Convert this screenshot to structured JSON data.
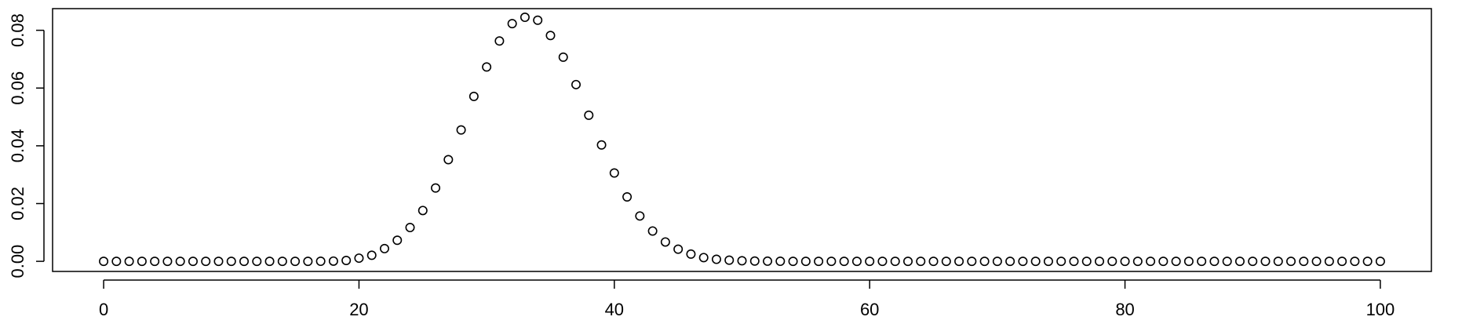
{
  "chart_data": {
    "type": "scatter",
    "title": "",
    "xlabel": "",
    "ylabel": "",
    "xlim": [
      -4,
      104
    ],
    "ylim": [
      -0.0035,
      0.0875
    ],
    "x_ticks": [
      0,
      20,
      40,
      60,
      80,
      100
    ],
    "x_tick_labels": [
      "0",
      "20",
      "40",
      "60",
      "80",
      "100"
    ],
    "y_ticks": [
      0.0,
      0.02,
      0.04,
      0.06,
      0.08
    ],
    "y_tick_labels": [
      "0.00",
      "0.02",
      "0.04",
      "0.06",
      "0.08"
    ],
    "grid": false,
    "legend": "none",
    "marker": "open-circle",
    "series": [
      {
        "x": [
          0,
          1,
          2,
          3,
          4,
          5,
          6,
          7,
          8,
          9,
          10,
          11,
          12,
          13,
          14,
          15,
          16,
          17,
          18,
          19,
          20,
          21,
          22,
          23,
          24,
          25,
          26,
          27,
          28,
          29,
          30,
          31,
          32,
          33,
          34,
          35,
          36,
          37,
          38,
          39,
          40,
          41,
          42,
          43,
          44,
          45,
          46,
          47,
          48,
          49,
          50,
          51,
          52,
          53,
          54,
          55,
          56,
          57,
          58,
          59,
          60,
          61,
          62,
          63,
          64,
          65,
          66,
          67,
          68,
          69,
          70,
          71,
          72,
          73,
          74,
          75,
          76,
          77,
          78,
          79,
          80,
          81,
          82,
          83,
          84,
          85,
          86,
          87,
          88,
          89,
          90,
          91,
          92,
          93,
          94,
          95,
          96,
          97,
          98,
          99,
          100
        ],
        "y": [
          0,
          0,
          0,
          0,
          0,
          0,
          0,
          0,
          0,
          0,
          0,
          0,
          0,
          0,
          0,
          0,
          0,
          2e-05,
          8e-05,
          0.0003,
          0.0011,
          0.0021,
          0.0044,
          0.0073,
          0.0117,
          0.0176,
          0.0254,
          0.0352,
          0.0455,
          0.0571,
          0.0673,
          0.0763,
          0.0823,
          0.0845,
          0.0835,
          0.0782,
          0.0707,
          0.0612,
          0.0506,
          0.0403,
          0.0306,
          0.0223,
          0.0157,
          0.0105,
          0.0067,
          0.0042,
          0.0025,
          0.0013,
          0.0007,
          0.0004,
          0.0002,
          0.0001,
          5e-05,
          2e-05,
          0,
          0,
          0,
          0,
          0,
          0,
          0,
          0,
          0,
          0,
          0,
          0,
          0,
          0,
          0,
          0,
          0,
          0,
          0,
          0,
          0,
          0,
          0,
          0,
          0,
          0,
          0,
          0,
          0,
          0,
          0,
          0,
          0,
          0,
          0,
          0,
          0,
          0,
          0,
          0,
          0,
          0,
          0,
          0,
          0,
          0,
          0
        ]
      }
    ]
  }
}
